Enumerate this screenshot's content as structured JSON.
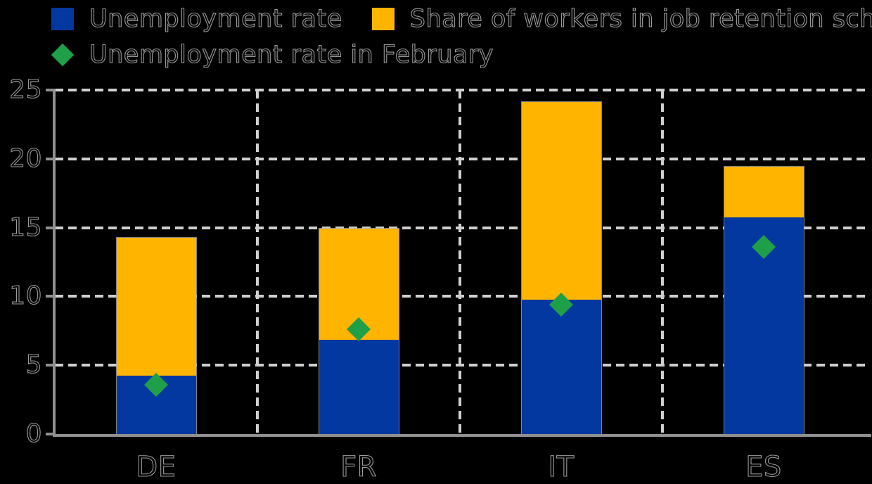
{
  "chart_data": {
    "type": "bar",
    "subtype": "stacked-bars-with-diamond-markers",
    "title": "",
    "categories": [
      "DE",
      "FR",
      "IT",
      "ES"
    ],
    "series": [
      {
        "name": "Unemployment rate",
        "color": "#0338A0",
        "values": [
          4.3,
          6.9,
          9.8,
          15.8
        ]
      },
      {
        "name": "Share of workers in job retention schemes",
        "color": "#FFB400",
        "values": [
          10.0,
          8.1,
          14.4,
          3.7
        ]
      }
    ],
    "markers": {
      "name": "Unemployment rate in February",
      "color": "#1FA048",
      "shape": "diamond",
      "values": [
        3.6,
        7.6,
        9.4,
        13.6
      ]
    },
    "stacked_totals": [
      14.3,
      15.0,
      24.2,
      19.5
    ],
    "xlabel": "",
    "ylabel": "",
    "ylim": [
      0,
      25
    ],
    "yticks": [
      0,
      5,
      10,
      15,
      20,
      25
    ],
    "ytick_labels": [
      "0",
      "5",
      "10",
      "15",
      "20",
      "25"
    ],
    "grid": {
      "horizontal": true,
      "vertical": true,
      "style": "dashed",
      "color": "#CFCFCF"
    },
    "legend_position": "top-left",
    "colors": {
      "background": "#000000",
      "axis": "#909090",
      "grid": "#CFCFCF",
      "text_fill": "#000000",
      "text_outline": "#9B9B9B"
    }
  },
  "legend": {
    "items": [
      {
        "swatch": "blue-square-swatch",
        "label": "Unemployment rate"
      },
      {
        "swatch": "orange-square-swatch",
        "label": "Share of workers in job retention schemes"
      },
      {
        "swatch": "green-diamond-swatch",
        "label": "Unemployment rate in February"
      }
    ]
  }
}
